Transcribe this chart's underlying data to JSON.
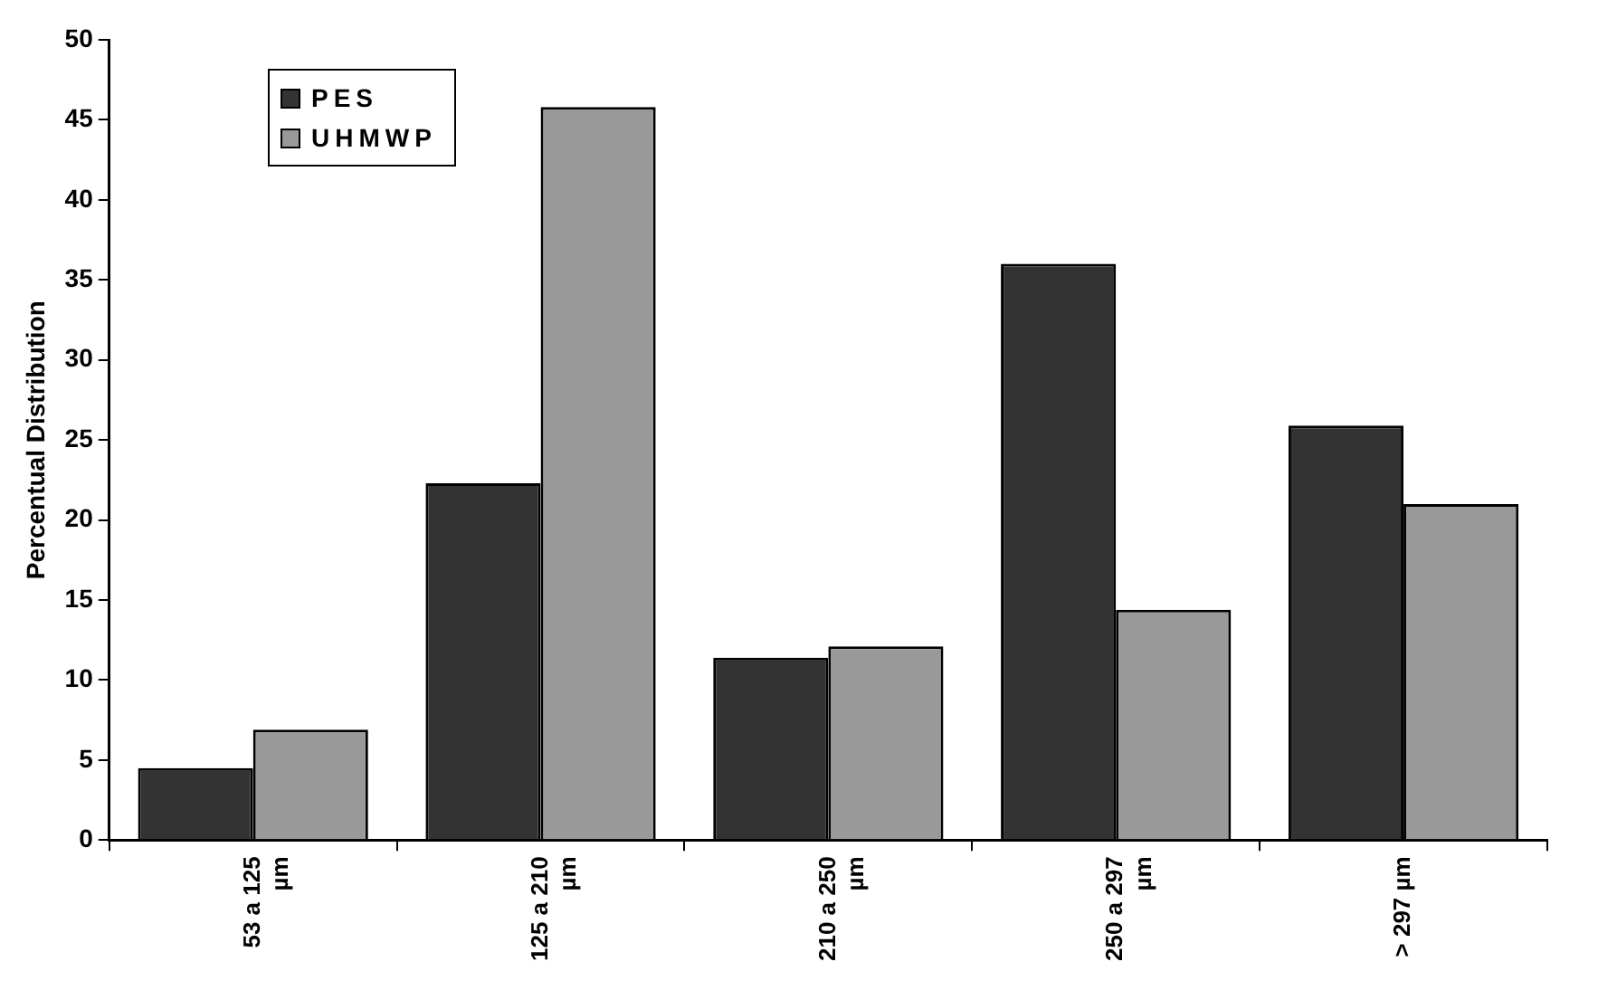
{
  "chart_data": {
    "type": "bar",
    "ylabel": "Percentual Distribution",
    "categories": [
      "53 a 125 µm",
      "125 a 210 µm",
      "210 a 250 µm",
      "250 a 297 µm",
      "> 297 µm"
    ],
    "series": [
      {
        "name": "PES",
        "color": "#333333",
        "values": [
          4.5,
          22.3,
          11.4,
          36.0,
          25.9
        ]
      },
      {
        "name": "UHMWP",
        "color": "#999999",
        "values": [
          6.9,
          45.8,
          12.1,
          14.4,
          21.0
        ]
      }
    ],
    "ylim": [
      0,
      50
    ],
    "yticks": [
      0,
      5,
      10,
      15,
      20,
      25,
      30,
      35,
      40,
      45,
      50
    ],
    "grid": false,
    "legend": "top left"
  }
}
